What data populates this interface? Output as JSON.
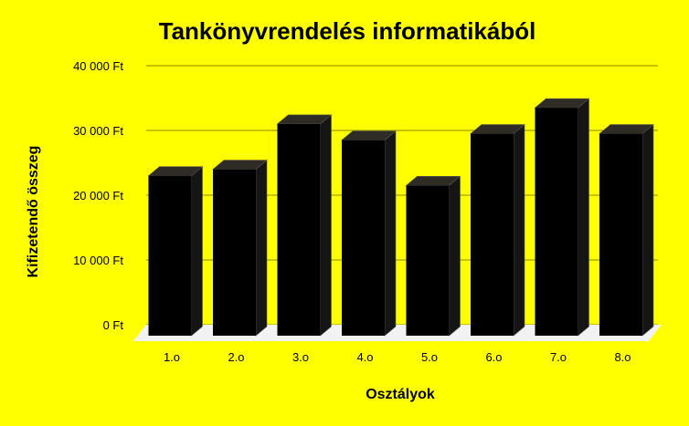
{
  "chart_data": {
    "type": "bar",
    "title": "Tankönyvrendelés informatikából",
    "xlabel": "Osztályok",
    "ylabel": "Kifizetendő összeg",
    "categories": [
      "1.o",
      "2.o",
      "3.o",
      "4.o",
      "5.o",
      "6.o",
      "7.o",
      "8.o"
    ],
    "values": [
      23000,
      24000,
      31000,
      28500,
      21500,
      29500,
      33500,
      29500
    ],
    "y_ticks": [
      "0 Ft",
      "10 000 Ft",
      "20 000 Ft",
      "30 000 Ft",
      "40 000 Ft"
    ],
    "ylim": [
      0,
      40000
    ],
    "grid": true,
    "legend": "none",
    "colors": {
      "background": "#ffff00",
      "bar_front": "#000000",
      "bar_top": "#2e2c24",
      "bar_side": "#151515",
      "gridline": "#8c8c00",
      "floor": "#f2f2f2"
    }
  }
}
